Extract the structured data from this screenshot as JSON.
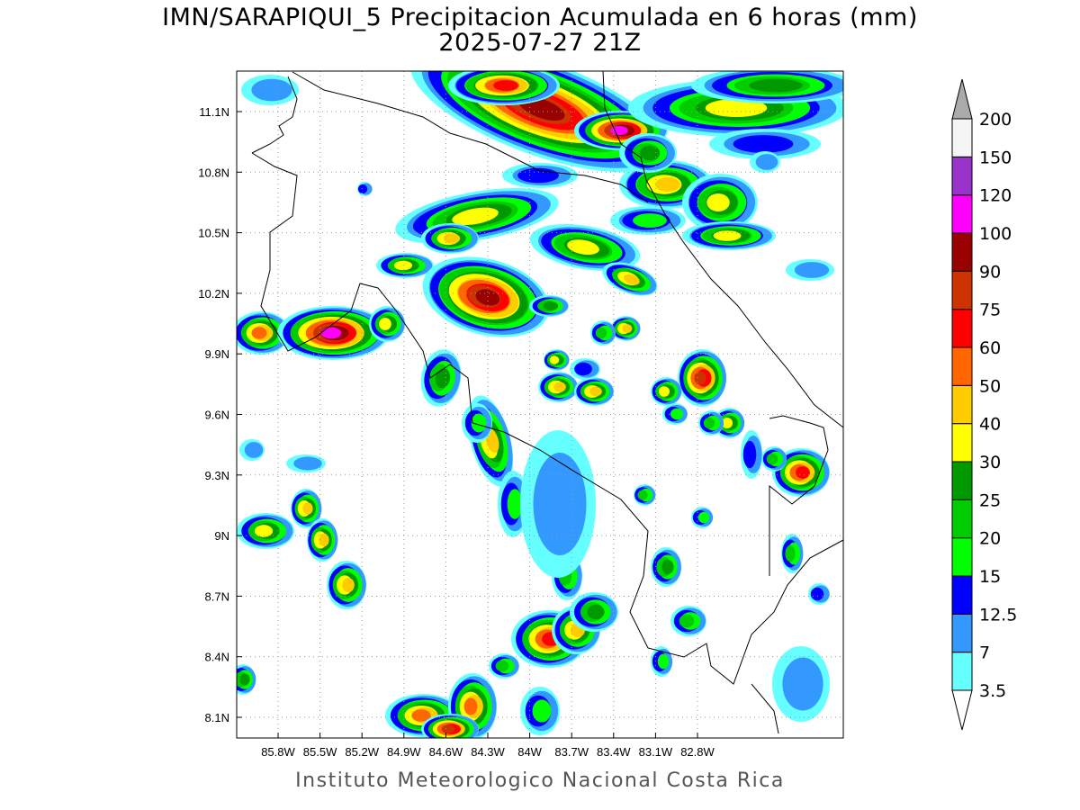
{
  "title": "IMN/SARAPIQUI_5 Precipitacion Acumulada en 6 horas (mm)",
  "subtitle": "2025-07-27 21Z",
  "footer": "Instituto Meteorologico Nacional Costa Rica",
  "map": {
    "lon_ticks": [
      "85.8W",
      "85.5W",
      "85.2W",
      "84.9W",
      "84.6W",
      "84.3W",
      "84W",
      "83.7W",
      "83.4W",
      "83.1W",
      "82.8W"
    ],
    "lat_ticks": [
      "11.1N",
      "10.8N",
      "10.5N",
      "10.2N",
      "9.9N",
      "9.6N",
      "9.3N",
      "9N",
      "8.7N",
      "8.4N",
      "8.1N"
    ],
    "grid": true
  },
  "colorbar": {
    "units": "mm",
    "labels": [
      "3.5",
      "7",
      "12.5",
      "15",
      "20",
      "25",
      "30",
      "40",
      "50",
      "60",
      "75",
      "90",
      "100",
      "120",
      "150",
      "200"
    ],
    "colors": [
      "#66ffff",
      "#3399ff",
      "#0000ff",
      "#00ff00",
      "#00cc00",
      "#009900",
      "#ffff00",
      "#ffcc00",
      "#ff6600",
      "#ff0000",
      "#cc3300",
      "#990000",
      "#ff00ff",
      "#9933cc",
      "#f5f5f5"
    ],
    "under_color": "#ffffff",
    "over_color": "#aaaaaa"
  }
}
